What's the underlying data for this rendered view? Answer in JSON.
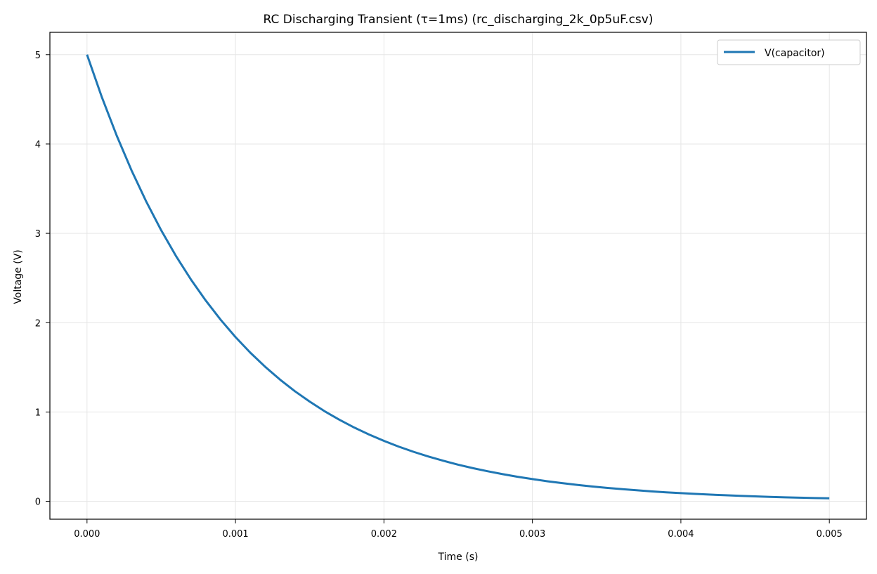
{
  "chart_data": {
    "type": "line",
    "title": "RC Discharging Transient (τ=1ms) (rc_discharging_2k_0p5uF.csv)",
    "xlabel": "Time (s)",
    "ylabel": "Voltage (V)",
    "xlim": [
      -0.00025,
      0.00525
    ],
    "ylim": [
      -0.2,
      5.25
    ],
    "xticks": [
      0.0,
      0.001,
      0.002,
      0.003,
      0.004,
      0.005
    ],
    "xtick_labels": [
      "0.000",
      "0.001",
      "0.002",
      "0.003",
      "0.004",
      "0.005"
    ],
    "yticks": [
      0,
      1,
      2,
      3,
      4,
      5
    ],
    "ytick_labels": [
      "0",
      "1",
      "2",
      "3",
      "4",
      "5"
    ],
    "grid": true,
    "legend_position": "top-right",
    "series": [
      {
        "name": "V(capacitor)",
        "color": "#1f77b4",
        "x": [
          0.0,
          0.0001,
          0.0002,
          0.0003,
          0.0004,
          0.0005,
          0.0006,
          0.0007,
          0.0008,
          0.0009,
          0.001,
          0.0011,
          0.0012,
          0.0013,
          0.0014,
          0.0015,
          0.0016,
          0.0017,
          0.0018,
          0.0019,
          0.002,
          0.0021,
          0.0022,
          0.0023,
          0.0024,
          0.0025,
          0.0026,
          0.0027,
          0.0028,
          0.0029,
          0.003,
          0.0031,
          0.0032,
          0.0033,
          0.0034,
          0.0035,
          0.0036,
          0.0037,
          0.0038,
          0.0039,
          0.004,
          0.0041,
          0.0042,
          0.0043,
          0.0044,
          0.0045,
          0.0046,
          0.0047,
          0.0048,
          0.0049,
          0.005
        ],
        "y": [
          5.0,
          4.524,
          4.094,
          3.704,
          3.352,
          3.033,
          2.744,
          2.483,
          2.247,
          2.033,
          1.839,
          1.664,
          1.506,
          1.363,
          1.233,
          1.116,
          1.009,
          0.913,
          0.826,
          0.748,
          0.677,
          0.612,
          0.554,
          0.501,
          0.454,
          0.41,
          0.371,
          0.336,
          0.304,
          0.275,
          0.249,
          0.225,
          0.204,
          0.184,
          0.167,
          0.151,
          0.137,
          0.124,
          0.112,
          0.101,
          0.092,
          0.083,
          0.075,
          0.068,
          0.061,
          0.056,
          0.05,
          0.045,
          0.041,
          0.037,
          0.034
        ]
      }
    ]
  }
}
